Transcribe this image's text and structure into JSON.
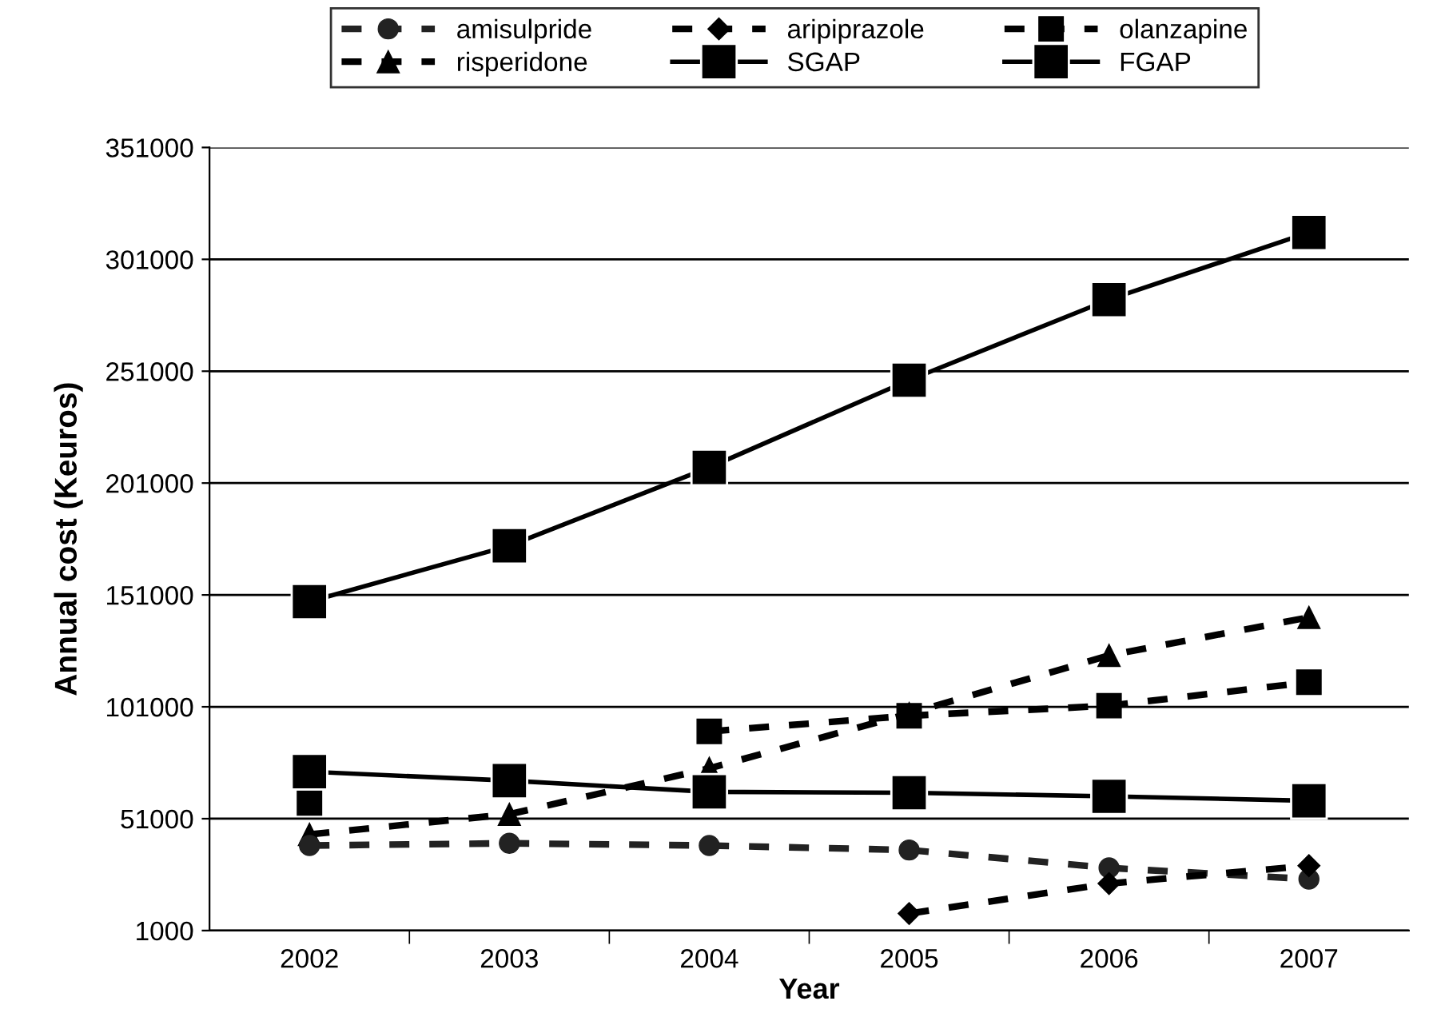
{
  "chart_data": {
    "type": "line",
    "xlabel": "Year",
    "ylabel": "Annual cost (Keuros)",
    "categories": [
      "2002",
      "2003",
      "2004",
      "2005",
      "2006",
      "2007"
    ],
    "series": [
      {
        "name": "amisulpride",
        "color": "#222222",
        "marker": "circle",
        "line_style": "dashed",
        "values": [
          39000,
          40000,
          39000,
          37000,
          29000,
          24000
        ]
      },
      {
        "name": "aripiprazole",
        "color": "#000000",
        "marker": "diamond",
        "line_style": "dashed",
        "values": [
          null,
          null,
          null,
          8600,
          22000,
          30000
        ]
      },
      {
        "name": "olanzapine",
        "color": "#000000",
        "marker": "square",
        "line_style": "dashed",
        "values": [
          58000,
          null,
          90000,
          97000,
          101500,
          112000
        ]
      },
      {
        "name": "risperidone",
        "color": "#000000",
        "marker": "triangle",
        "line_style": "dashed",
        "values": [
          44000,
          53000,
          73500,
          98000,
          124000,
          141000
        ]
      },
      {
        "name": "SGAP",
        "color": "#000000",
        "marker": "square",
        "line_style": "solid",
        "values": [
          148000,
          173000,
          208000,
          247000,
          283000,
          313000
        ]
      },
      {
        "name": "FGAP",
        "color": "#000000",
        "marker": "square",
        "line_style": "solid",
        "values": [
          72000,
          68000,
          63000,
          62600,
          61000,
          59000
        ]
      }
    ],
    "ylim": [
      1000,
      351000
    ],
    "yticks": [
      1000,
      51000,
      101000,
      151000,
      201000,
      251000,
      301000,
      351000
    ],
    "grid": "y",
    "legend": "top"
  }
}
